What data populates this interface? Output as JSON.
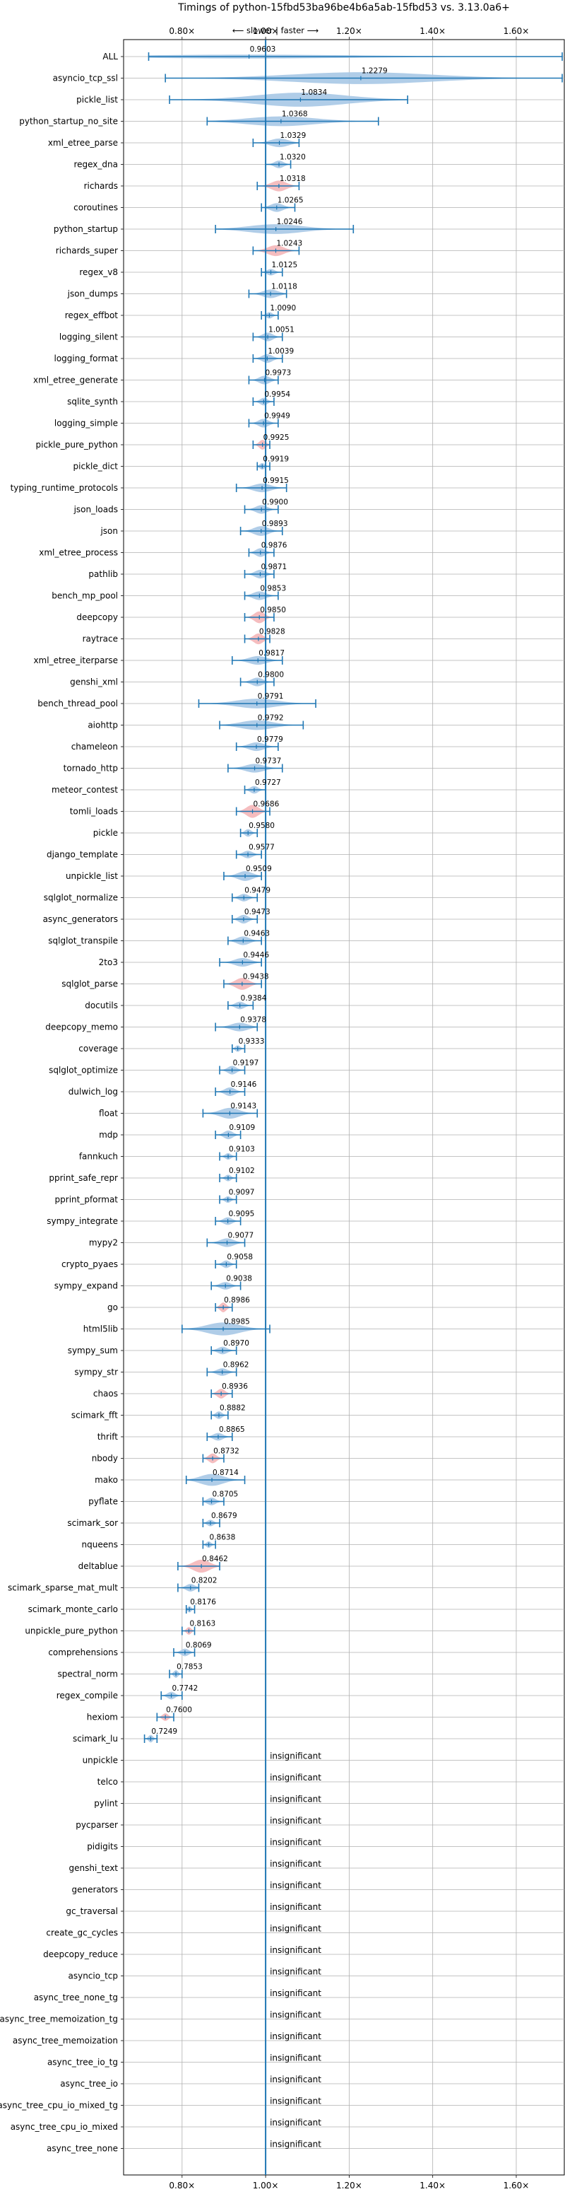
{
  "chart_data": {
    "type": "violin",
    "title": "Timings of python-15fbd53ba96be4b6a5ab-15fbd53 vs. 3.13.0a6+",
    "direction_label": "⟵ slower | faster ⟶",
    "xlim": [
      0.66,
      1.715
    ],
    "xticks": [
      0.8,
      1.0,
      1.2,
      1.4,
      1.6
    ],
    "xtick_labels": [
      "0.80×",
      "1.00×",
      "1.20×",
      "1.40×",
      "1.60×"
    ],
    "reference_line": 1.0,
    "grid": true,
    "colors": {
      "faster_or_neutral": "#a7c8e6",
      "slower": "#f4b6b8",
      "errorbar": "#1f77b4",
      "reference": "#1f77b4",
      "grid": "#b0b0b0"
    },
    "insignificant_label": "insignificant",
    "benchmarks": [
      {
        "name": "ALL",
        "value": 0.9603,
        "lo": 0.72,
        "hi": 1.71,
        "width": 0.18,
        "hl": false
      },
      {
        "name": "asyncio_tcp_ssl",
        "value": 1.2279,
        "lo": 0.76,
        "hi": 1.71,
        "width": 0.55,
        "hl": false
      },
      {
        "name": "pickle_list",
        "value": 1.0834,
        "lo": 0.77,
        "hi": 1.34,
        "width": 0.65,
        "hl": false
      },
      {
        "name": "python_startup_no_site",
        "value": 1.0368,
        "lo": 0.86,
        "hi": 1.27,
        "width": 0.45,
        "hl": false
      },
      {
        "name": "xml_etree_parse",
        "value": 1.0329,
        "lo": 0.97,
        "hi": 1.08,
        "width": 0.4,
        "hl": false
      },
      {
        "name": "regex_dna",
        "value": 1.032,
        "lo": 1.0,
        "hi": 1.06,
        "width": 0.35,
        "hl": false
      },
      {
        "name": "richards",
        "value": 1.0318,
        "lo": 0.98,
        "hi": 1.08,
        "width": 0.5,
        "hl": true
      },
      {
        "name": "coroutines",
        "value": 1.0265,
        "lo": 0.99,
        "hi": 1.07,
        "width": 0.4,
        "hl": false
      },
      {
        "name": "python_startup",
        "value": 1.0246,
        "lo": 0.88,
        "hi": 1.21,
        "width": 0.45,
        "hl": false
      },
      {
        "name": "richards_super",
        "value": 1.0243,
        "lo": 0.97,
        "hi": 1.08,
        "width": 0.5,
        "hl": true
      },
      {
        "name": "regex_v8",
        "value": 1.0125,
        "lo": 0.99,
        "hi": 1.04,
        "width": 0.3,
        "hl": false
      },
      {
        "name": "json_dumps",
        "value": 1.0118,
        "lo": 0.96,
        "hi": 1.05,
        "width": 0.4,
        "hl": false
      },
      {
        "name": "regex_effbot",
        "value": 1.009,
        "lo": 0.99,
        "hi": 1.03,
        "width": 0.3,
        "hl": false
      },
      {
        "name": "logging_silent",
        "value": 1.0051,
        "lo": 0.97,
        "hi": 1.04,
        "width": 0.4,
        "hl": false
      },
      {
        "name": "logging_format",
        "value": 1.0039,
        "lo": 0.97,
        "hi": 1.04,
        "width": 0.4,
        "hl": false
      },
      {
        "name": "xml_etree_generate",
        "value": 0.9973,
        "lo": 0.96,
        "hi": 1.03,
        "width": 0.4,
        "hl": false
      },
      {
        "name": "sqlite_synth",
        "value": 0.9954,
        "lo": 0.97,
        "hi": 1.02,
        "width": 0.35,
        "hl": false
      },
      {
        "name": "logging_simple",
        "value": 0.9949,
        "lo": 0.96,
        "hi": 1.03,
        "width": 0.4,
        "hl": false
      },
      {
        "name": "pickle_pure_python",
        "value": 0.9925,
        "lo": 0.97,
        "hi": 1.01,
        "width": 0.45,
        "hl": true
      },
      {
        "name": "pickle_dict",
        "value": 0.9919,
        "lo": 0.98,
        "hi": 1.01,
        "width": 0.3,
        "hl": false
      },
      {
        "name": "typing_runtime_protocols",
        "value": 0.9915,
        "lo": 0.93,
        "hi": 1.05,
        "width": 0.4,
        "hl": false
      },
      {
        "name": "json_loads",
        "value": 0.99,
        "lo": 0.95,
        "hi": 1.03,
        "width": 0.4,
        "hl": false
      },
      {
        "name": "json",
        "value": 0.9893,
        "lo": 0.94,
        "hi": 1.04,
        "width": 0.45,
        "hl": false
      },
      {
        "name": "xml_etree_process",
        "value": 0.9876,
        "lo": 0.96,
        "hi": 1.02,
        "width": 0.4,
        "hl": false
      },
      {
        "name": "pathlib",
        "value": 0.9871,
        "lo": 0.95,
        "hi": 1.02,
        "width": 0.4,
        "hl": false
      },
      {
        "name": "bench_mp_pool",
        "value": 0.9853,
        "lo": 0.95,
        "hi": 1.03,
        "width": 0.4,
        "hl": false
      },
      {
        "name": "deepcopy",
        "value": 0.985,
        "lo": 0.95,
        "hi": 1.02,
        "width": 0.55,
        "hl": true
      },
      {
        "name": "raytrace",
        "value": 0.9828,
        "lo": 0.95,
        "hi": 1.01,
        "width": 0.5,
        "hl": true
      },
      {
        "name": "xml_etree_iterparse",
        "value": 0.9817,
        "lo": 0.92,
        "hi": 1.04,
        "width": 0.4,
        "hl": false
      },
      {
        "name": "genshi_xml",
        "value": 0.98,
        "lo": 0.94,
        "hi": 1.02,
        "width": 0.4,
        "hl": false
      },
      {
        "name": "bench_thread_pool",
        "value": 0.9791,
        "lo": 0.84,
        "hi": 1.12,
        "width": 0.45,
        "hl": false
      },
      {
        "name": "aiohttp",
        "value": 0.9792,
        "lo": 0.89,
        "hi": 1.09,
        "width": 0.45,
        "hl": false
      },
      {
        "name": "chameleon",
        "value": 0.9779,
        "lo": 0.93,
        "hi": 1.03,
        "width": 0.4,
        "hl": false
      },
      {
        "name": "tornado_http",
        "value": 0.9737,
        "lo": 0.91,
        "hi": 1.04,
        "width": 0.4,
        "hl": false
      },
      {
        "name": "meteor_contest",
        "value": 0.9727,
        "lo": 0.95,
        "hi": 1.0,
        "width": 0.35,
        "hl": false
      },
      {
        "name": "tomli_loads",
        "value": 0.9686,
        "lo": 0.93,
        "hi": 1.01,
        "width": 0.6,
        "hl": true
      },
      {
        "name": "pickle",
        "value": 0.958,
        "lo": 0.94,
        "hi": 0.98,
        "width": 0.35,
        "hl": false
      },
      {
        "name": "django_template",
        "value": 0.9577,
        "lo": 0.93,
        "hi": 0.99,
        "width": 0.35,
        "hl": false
      },
      {
        "name": "unpickle_list",
        "value": 0.9509,
        "lo": 0.9,
        "hi": 0.99,
        "width": 0.45,
        "hl": false
      },
      {
        "name": "sqlglot_normalize",
        "value": 0.9479,
        "lo": 0.92,
        "hi": 0.98,
        "width": 0.35,
        "hl": false
      },
      {
        "name": "async_generators",
        "value": 0.9473,
        "lo": 0.92,
        "hi": 0.98,
        "width": 0.4,
        "hl": false
      },
      {
        "name": "sqlglot_transpile",
        "value": 0.9463,
        "lo": 0.91,
        "hi": 0.99,
        "width": 0.4,
        "hl": false
      },
      {
        "name": "2to3",
        "value": 0.9446,
        "lo": 0.89,
        "hi": 0.99,
        "width": 0.4,
        "hl": false
      },
      {
        "name": "sqlglot_parse",
        "value": 0.9438,
        "lo": 0.9,
        "hi": 0.99,
        "width": 0.55,
        "hl": true
      },
      {
        "name": "docutils",
        "value": 0.9384,
        "lo": 0.91,
        "hi": 0.97,
        "width": 0.35,
        "hl": false
      },
      {
        "name": "deepcopy_memo",
        "value": 0.9378,
        "lo": 0.88,
        "hi": 0.98,
        "width": 0.4,
        "hl": false
      },
      {
        "name": "coverage",
        "value": 0.9333,
        "lo": 0.92,
        "hi": 0.95,
        "width": 0.3,
        "hl": false
      },
      {
        "name": "sqlglot_optimize",
        "value": 0.9197,
        "lo": 0.89,
        "hi": 0.95,
        "width": 0.4,
        "hl": false
      },
      {
        "name": "dulwich_log",
        "value": 0.9146,
        "lo": 0.88,
        "hi": 0.95,
        "width": 0.4,
        "hl": false
      },
      {
        "name": "float",
        "value": 0.9143,
        "lo": 0.85,
        "hi": 0.98,
        "width": 0.5,
        "hl": false
      },
      {
        "name": "mdp",
        "value": 0.9109,
        "lo": 0.88,
        "hi": 0.94,
        "width": 0.4,
        "hl": false
      },
      {
        "name": "fannkuch",
        "value": 0.9103,
        "lo": 0.89,
        "hi": 0.93,
        "width": 0.3,
        "hl": false
      },
      {
        "name": "pprint_safe_repr",
        "value": 0.9102,
        "lo": 0.89,
        "hi": 0.93,
        "width": 0.3,
        "hl": false
      },
      {
        "name": "pprint_pformat",
        "value": 0.9097,
        "lo": 0.89,
        "hi": 0.93,
        "width": 0.3,
        "hl": false
      },
      {
        "name": "sympy_integrate",
        "value": 0.9095,
        "lo": 0.88,
        "hi": 0.94,
        "width": 0.35,
        "hl": false
      },
      {
        "name": "mypy2",
        "value": 0.9077,
        "lo": 0.86,
        "hi": 0.95,
        "width": 0.4,
        "hl": false
      },
      {
        "name": "crypto_pyaes",
        "value": 0.9058,
        "lo": 0.88,
        "hi": 0.93,
        "width": 0.35,
        "hl": false
      },
      {
        "name": "sympy_expand",
        "value": 0.9038,
        "lo": 0.87,
        "hi": 0.94,
        "width": 0.35,
        "hl": false
      },
      {
        "name": "go",
        "value": 0.8986,
        "lo": 0.88,
        "hi": 0.92,
        "width": 0.45,
        "hl": true
      },
      {
        "name": "html5lib",
        "value": 0.8985,
        "lo": 0.8,
        "hi": 1.01,
        "width": 0.6,
        "hl": false
      },
      {
        "name": "sympy_sum",
        "value": 0.897,
        "lo": 0.87,
        "hi": 0.93,
        "width": 0.35,
        "hl": false
      },
      {
        "name": "sympy_str",
        "value": 0.8962,
        "lo": 0.86,
        "hi": 0.93,
        "width": 0.35,
        "hl": false
      },
      {
        "name": "chaos",
        "value": 0.8936,
        "lo": 0.87,
        "hi": 0.92,
        "width": 0.45,
        "hl": true
      },
      {
        "name": "scimark_fft",
        "value": 0.8882,
        "lo": 0.87,
        "hi": 0.91,
        "width": 0.35,
        "hl": false
      },
      {
        "name": "thrift",
        "value": 0.8865,
        "lo": 0.86,
        "hi": 0.92,
        "width": 0.35,
        "hl": false
      },
      {
        "name": "nbody",
        "value": 0.8732,
        "lo": 0.85,
        "hi": 0.9,
        "width": 0.45,
        "hl": true
      },
      {
        "name": "mako",
        "value": 0.8714,
        "lo": 0.81,
        "hi": 0.95,
        "width": 0.55,
        "hl": false
      },
      {
        "name": "pyflate",
        "value": 0.8705,
        "lo": 0.85,
        "hi": 0.9,
        "width": 0.35,
        "hl": false
      },
      {
        "name": "scimark_sor",
        "value": 0.8679,
        "lo": 0.85,
        "hi": 0.89,
        "width": 0.3,
        "hl": false
      },
      {
        "name": "nqueens",
        "value": 0.8638,
        "lo": 0.85,
        "hi": 0.88,
        "width": 0.3,
        "hl": false
      },
      {
        "name": "deltablue",
        "value": 0.8462,
        "lo": 0.79,
        "hi": 0.89,
        "width": 0.6,
        "hl": true
      },
      {
        "name": "scimark_sparse_mat_mult",
        "value": 0.8202,
        "lo": 0.79,
        "hi": 0.84,
        "width": 0.35,
        "hl": false
      },
      {
        "name": "scimark_monte_carlo",
        "value": 0.8176,
        "lo": 0.81,
        "hi": 0.83,
        "width": 0.3,
        "hl": false
      },
      {
        "name": "unpickle_pure_python",
        "value": 0.8163,
        "lo": 0.8,
        "hi": 0.83,
        "width": 0.35,
        "hl": true
      },
      {
        "name": "comprehensions",
        "value": 0.8069,
        "lo": 0.78,
        "hi": 0.83,
        "width": 0.35,
        "hl": false
      },
      {
        "name": "spectral_norm",
        "value": 0.7853,
        "lo": 0.77,
        "hi": 0.8,
        "width": 0.35,
        "hl": false
      },
      {
        "name": "regex_compile",
        "value": 0.7742,
        "lo": 0.75,
        "hi": 0.8,
        "width": 0.35,
        "hl": false
      },
      {
        "name": "hexiom",
        "value": 0.76,
        "lo": 0.74,
        "hi": 0.78,
        "width": 0.35,
        "hl": true
      },
      {
        "name": "scimark_lu",
        "value": 0.7249,
        "lo": 0.71,
        "hi": 0.74,
        "width": 0.35,
        "hl": false
      },
      {
        "name": "unpickle",
        "value": null
      },
      {
        "name": "telco",
        "value": null
      },
      {
        "name": "pylint",
        "value": null
      },
      {
        "name": "pycparser",
        "value": null
      },
      {
        "name": "pidigits",
        "value": null
      },
      {
        "name": "genshi_text",
        "value": null
      },
      {
        "name": "generators",
        "value": null
      },
      {
        "name": "gc_traversal",
        "value": null
      },
      {
        "name": "create_gc_cycles",
        "value": null
      },
      {
        "name": "deepcopy_reduce",
        "value": null
      },
      {
        "name": "asyncio_tcp",
        "value": null
      },
      {
        "name": "async_tree_none_tg",
        "value": null
      },
      {
        "name": "async_tree_memoization_tg",
        "value": null
      },
      {
        "name": "async_tree_memoization",
        "value": null
      },
      {
        "name": "async_tree_io_tg",
        "value": null
      },
      {
        "name": "async_tree_io",
        "value": null
      },
      {
        "name": "async_tree_cpu_io_mixed_tg",
        "value": null
      },
      {
        "name": "async_tree_cpu_io_mixed",
        "value": null
      },
      {
        "name": "async_tree_none",
        "value": null
      }
    ]
  }
}
